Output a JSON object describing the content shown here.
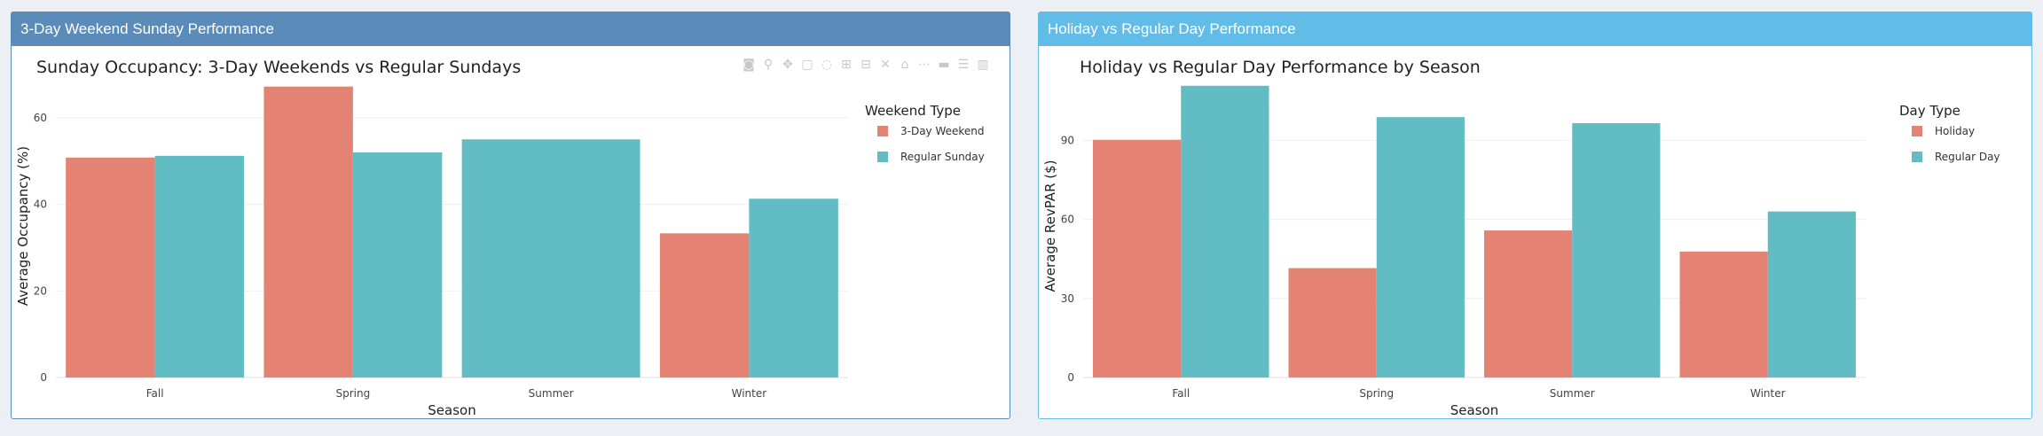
{
  "panels": [
    {
      "header": "3-Day Weekend Sunday Performance"
    },
    {
      "header": "Holiday vs Regular Day Performance"
    }
  ],
  "toolbar_icons": [
    "camera-icon",
    "zoom-icon",
    "pan-icon",
    "box-select-icon",
    "lasso-icon",
    "zoom-in-icon",
    "zoom-out-icon",
    "autoscale-icon",
    "reset-axes-icon",
    "spike-lines-icon",
    "hover-closest-icon",
    "hover-compare-icon",
    "plotly-logo-icon"
  ],
  "colors": {
    "series1": "#e48373",
    "series2": "#62bcc3"
  },
  "chart_data": [
    {
      "type": "bar",
      "title": "Sunday Occupancy: 3-Day Weekends vs Regular Sundays",
      "xlabel": "Season",
      "ylabel": "Average Occupancy (%)",
      "categories": [
        "Fall",
        "Spring",
        "Summer",
        "Winter"
      ],
      "ylim": [
        0,
        70
      ],
      "yticks": [
        0,
        20,
        40,
        60
      ],
      "legend_title": "Weekend Type",
      "legend_position": "right",
      "series": [
        {
          "name": "3-Day Weekend",
          "values": [
            50.8,
            67.2,
            null,
            33.3
          ]
        },
        {
          "name": "Regular Sunday",
          "values": [
            51.2,
            52.0,
            55.0,
            41.3
          ]
        }
      ]
    },
    {
      "type": "bar",
      "title": "Holiday vs Regular Day Performance by Season",
      "xlabel": "Season",
      "ylabel": "Average RevPAR ($)",
      "categories": [
        "Fall",
        "Spring",
        "Summer",
        "Winter"
      ],
      "ylim": [
        0,
        115
      ],
      "yticks": [
        0,
        30,
        60,
        90
      ],
      "legend_title": "Day Type",
      "legend_position": "right",
      "series": [
        {
          "name": "Holiday",
          "values": [
            90.2,
            41.5,
            55.8,
            47.8
          ]
        },
        {
          "name": "Regular Day",
          "values": [
            110.7,
            98.8,
            96.5,
            63.0
          ]
        }
      ]
    }
  ]
}
